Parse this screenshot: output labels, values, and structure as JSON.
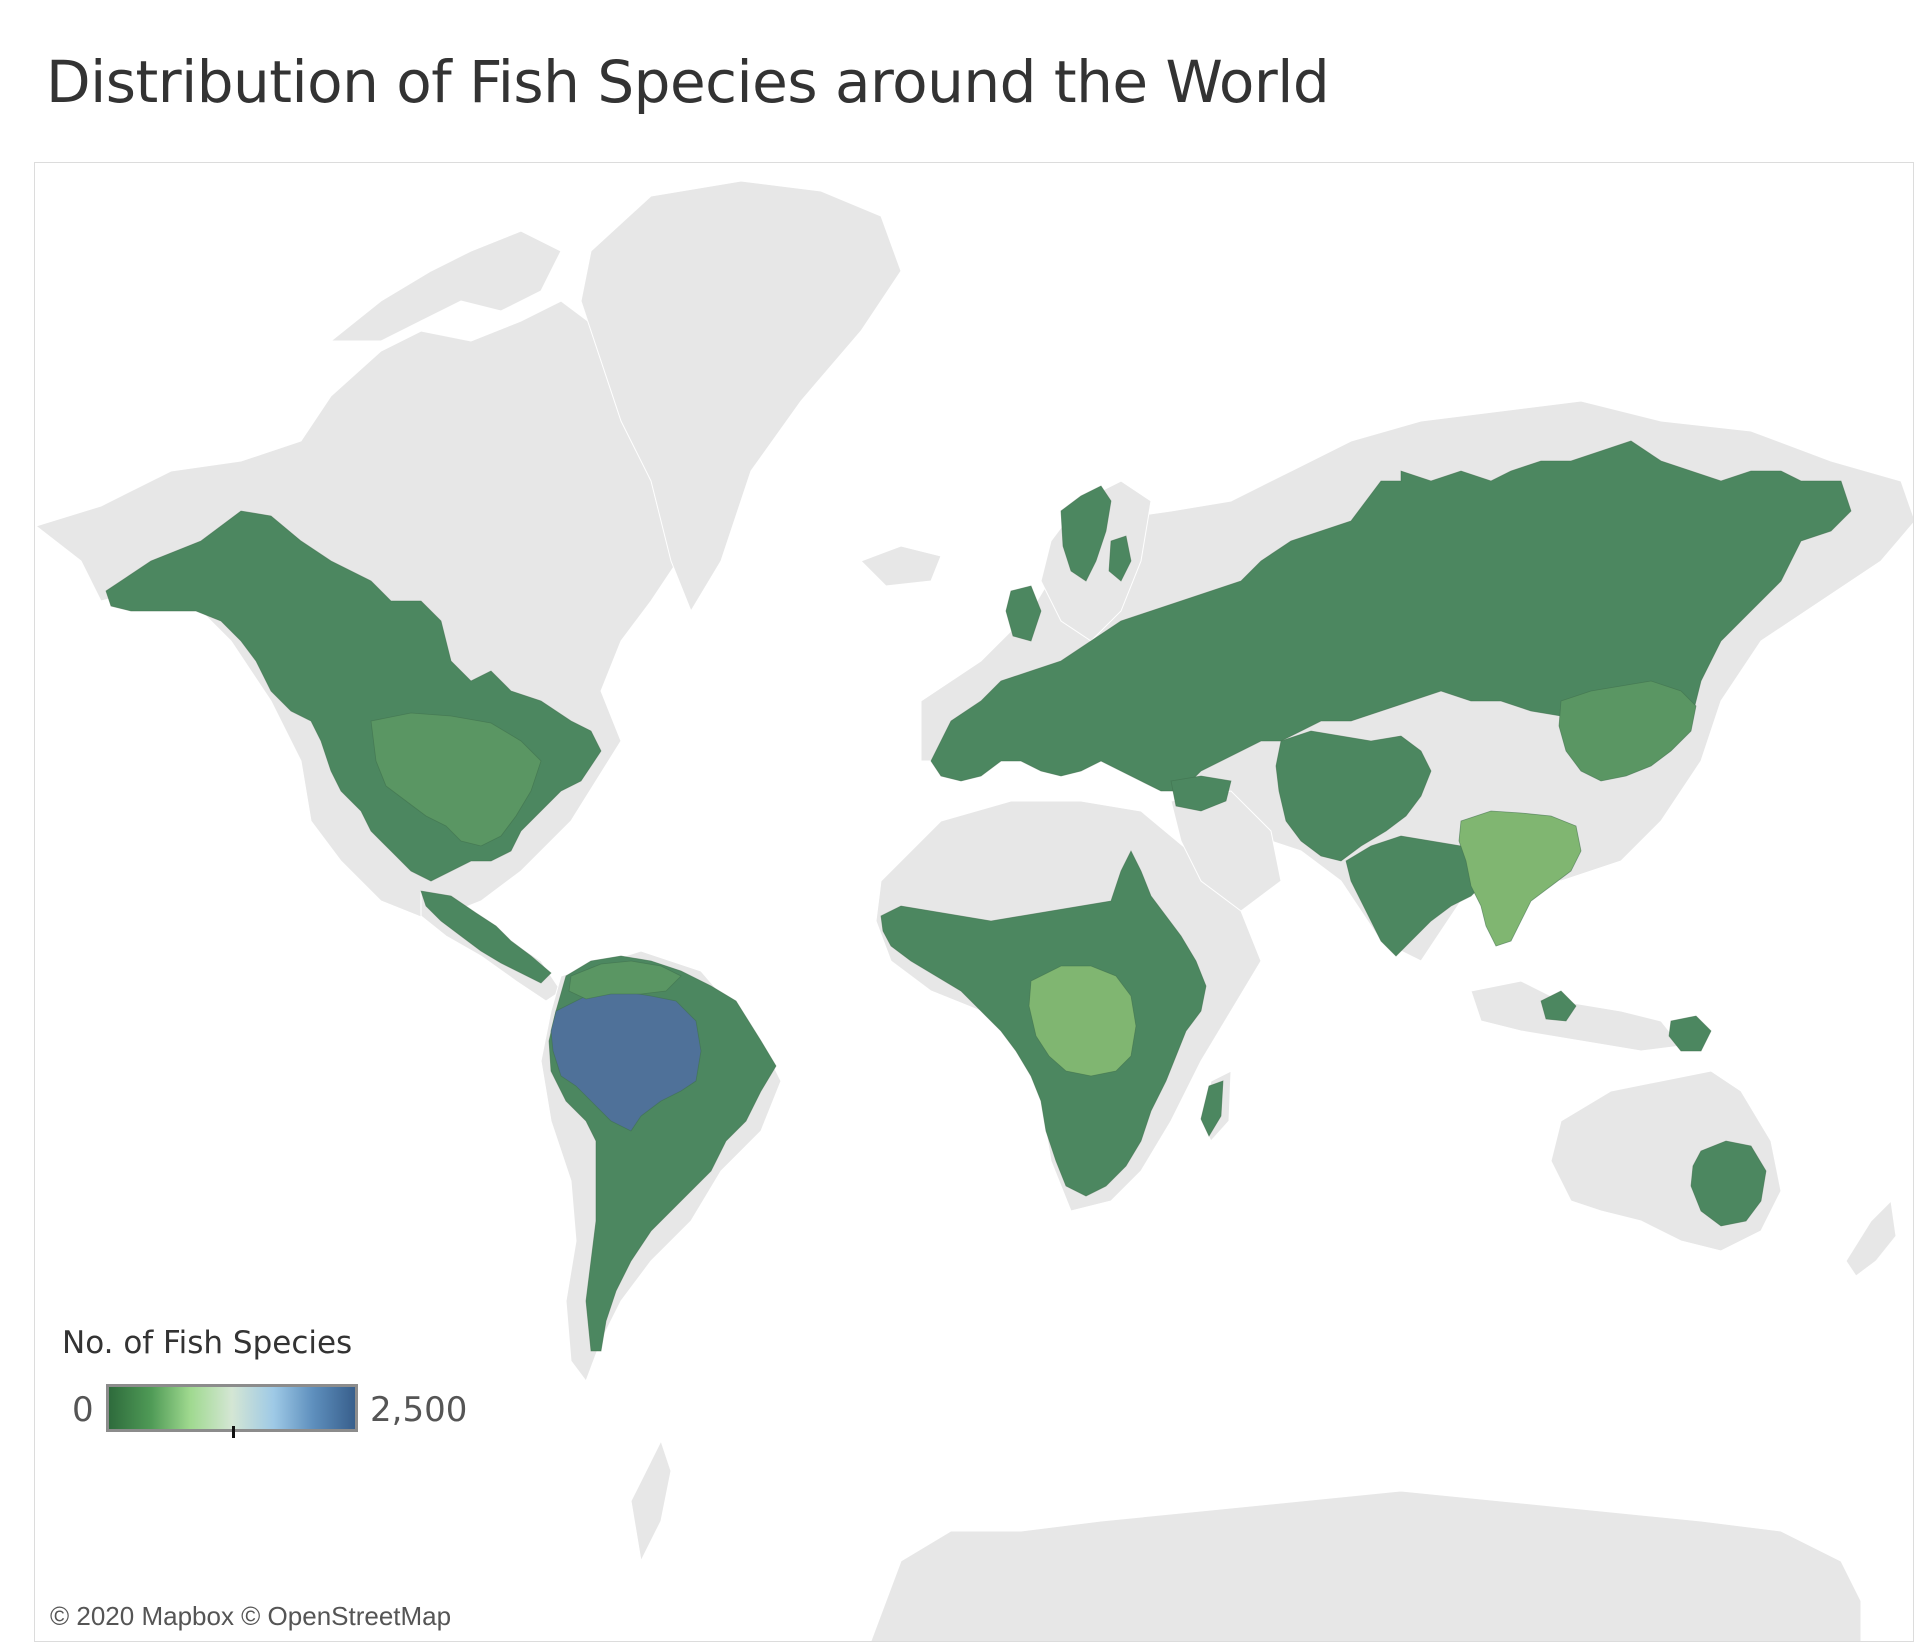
{
  "title": "Distribution of Fish Species around the World",
  "legend": {
    "title": "No. of Fish Species",
    "min_label": "0",
    "max_label": "2,500",
    "min_value": 0,
    "max_value": 2500,
    "midpoint_value": 1250,
    "gradient": [
      "#2e6b3c",
      "#4f9a56",
      "#9fd98f",
      "#d4e6d4",
      "#9ec9e6",
      "#5e8fbd",
      "#385f8c"
    ]
  },
  "attribution": "© 2020 Mapbox © OpenStreetMap",
  "colors": {
    "background_land": "#e7e7e7",
    "ocean": "#ffffff",
    "dark_green": "#4c8760",
    "medium_green": "#5a9663",
    "light_green": "#80b671",
    "blue": "#4f7199",
    "border": "#b5b5b5"
  },
  "regions": [
    {
      "name": "Amazon basin",
      "class": "blue"
    },
    {
      "name": "Congo basin",
      "class": "light_green"
    },
    {
      "name": "Southeast Asia (Mekong / Yangtze)",
      "class": "light_green"
    },
    {
      "name": "Mississippi basin",
      "class": "medium_green"
    },
    {
      "name": "North America",
      "class": "dark_green"
    },
    {
      "name": "Europe and Russia",
      "class": "dark_green"
    },
    {
      "name": "Africa",
      "class": "dark_green"
    },
    {
      "name": "South Asia",
      "class": "dark_green"
    },
    {
      "name": "South America",
      "class": "dark_green"
    },
    {
      "name": "Australia",
      "class": "dark_green"
    }
  ]
}
